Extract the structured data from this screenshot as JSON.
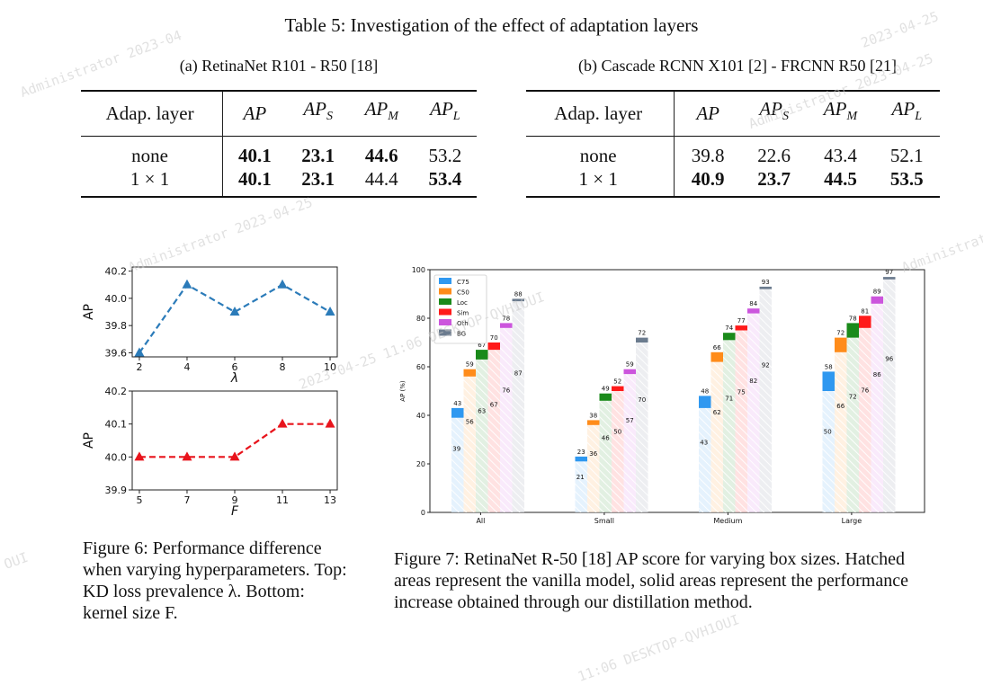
{
  "table": {
    "title": "Table 5: Investigation of the effect of adaptation layers",
    "a": {
      "caption": "(a) RetinaNet R101 - R50 [18]",
      "headers": [
        "Adap. layer",
        "AP",
        "AP",
        "AP",
        "AP"
      ],
      "header_subs": [
        "",
        "",
        "S",
        "M",
        "L"
      ],
      "rows": [
        {
          "label": "none",
          "values": [
            "40.1",
            "23.1",
            "44.6",
            "53.2"
          ],
          "bold": [
            true,
            true,
            true,
            false
          ]
        },
        {
          "label": "1 × 1",
          "values": [
            "40.1",
            "23.1",
            "44.4",
            "53.4"
          ],
          "bold": [
            true,
            true,
            false,
            true
          ]
        }
      ]
    },
    "b": {
      "caption": "(b) Cascade RCNN X101 [2] - FRCNN R50 [21]",
      "headers": [
        "Adap. layer",
        "AP",
        "AP",
        "AP",
        "AP"
      ],
      "header_subs": [
        "",
        "",
        "S",
        "M",
        "L"
      ],
      "rows": [
        {
          "label": "none",
          "values": [
            "39.8",
            "22.6",
            "43.4",
            "52.1"
          ],
          "bold": [
            false,
            false,
            false,
            false
          ]
        },
        {
          "label": "1 × 1",
          "values": [
            "40.9",
            "23.7",
            "44.5",
            "53.5"
          ],
          "bold": [
            true,
            true,
            true,
            true
          ]
        }
      ]
    }
  },
  "chart_data": [
    {
      "type": "line",
      "x": [
        2,
        4,
        6,
        8,
        10
      ],
      "y": [
        39.6,
        40.1,
        39.9,
        40.1,
        39.9
      ],
      "xlabel": "λ",
      "ylabel": "AP",
      "xticks": [
        "2",
        "4",
        "6",
        "8",
        "10"
      ],
      "yticks": [
        "39.6",
        "39.8",
        "40.0",
        "40.2"
      ],
      "xlim": [
        1.7,
        10.3
      ],
      "ylim": [
        39.57,
        40.23
      ],
      "ytick_values": [
        39.6,
        39.8,
        40.0,
        40.2
      ],
      "xtick_values": [
        2,
        4,
        6,
        8,
        10
      ],
      "color": "#2b7bb9"
    },
    {
      "type": "line",
      "x": [
        5,
        7,
        9,
        11,
        13
      ],
      "y": [
        40.0,
        40.0,
        40.0,
        40.1,
        40.1
      ],
      "xlabel": "F",
      "ylabel": "AP",
      "xticks": [
        "5",
        "7",
        "9",
        "11",
        "13"
      ],
      "yticks": [
        "39.9",
        "40.0",
        "40.1",
        "40.2"
      ],
      "xlim": [
        4.7,
        13.3
      ],
      "ylim": [
        39.9,
        40.2
      ],
      "ytick_values": [
        39.9,
        40.0,
        40.1,
        40.2
      ],
      "xtick_values": [
        5,
        7,
        9,
        11,
        13
      ],
      "color": "#e8141c"
    },
    {
      "type": "bar",
      "categories": [
        "All",
        "Small",
        "Medium",
        "Large"
      ],
      "ylabel": "AP (%)",
      "ylim": [
        0,
        100
      ],
      "yticks": [
        "0",
        "20",
        "40",
        "60",
        "80",
        "100"
      ],
      "ytick_values": [
        0,
        20,
        40,
        60,
        80,
        100
      ],
      "series": [
        {
          "name": "C75",
          "color": "#2f98f0",
          "base": [
            39,
            21,
            43,
            50
          ],
          "total": [
            43,
            23,
            48,
            58
          ]
        },
        {
          "name": "C50",
          "color": "#ff8c1a",
          "base": [
            56,
            36,
            62,
            66
          ],
          "total": [
            59,
            38,
            66,
            72
          ]
        },
        {
          "name": "Loc",
          "color": "#1a8a1a",
          "base": [
            63,
            46,
            71,
            72
          ],
          "total": [
            67,
            49,
            74,
            78
          ]
        },
        {
          "name": "Sim",
          "color": "#ff1a1a",
          "base": [
            67,
            50,
            75,
            76
          ],
          "total": [
            70,
            52,
            77,
            81
          ]
        },
        {
          "name": "Oth",
          "color": "#cc55dd",
          "base": [
            76,
            57,
            82,
            86
          ],
          "total": [
            78,
            59,
            84,
            89
          ]
        },
        {
          "name": "BG",
          "color": "#6b7b8e",
          "base": [
            87,
            70,
            92,
            96
          ],
          "total": [
            88,
            72,
            93,
            97
          ]
        }
      ]
    }
  ],
  "captions": {
    "fig6": "Figure 6: Performance difference when varying hyperparameters. Top: KD loss prevalence λ. Bottom: kernel size F.",
    "fig7": "Figure 7: RetinaNet R-50 [18] AP score for varying box sizes. Hatched areas represent the vanilla model, solid areas represent the performance increase obtained through our distillation method."
  },
  "watermarks": [
    "Administrator 2023-04",
    "2023-04-25",
    "Administrator 2023-04-25",
    "Administrator",
    "2023-04-25 11:06 DESKTOP-QVH1OUI",
    "11:06 DESKTOP-QVH1OUI",
    "Administrator 2023-04-25",
    "OUI"
  ]
}
